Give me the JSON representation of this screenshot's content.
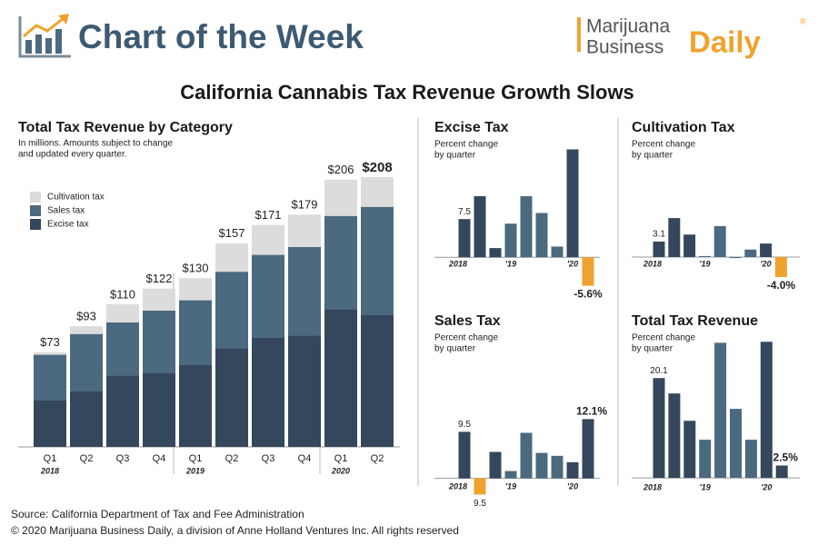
{
  "header": {
    "title": "Chart of the Week",
    "logo_top": "Marijuana",
    "logo_bottom": "Business",
    "logo_accent": "Daily",
    "logo_mark": "®"
  },
  "title": "California Cannabis Tax Revenue Growth Slows",
  "chart_data": [
    {
      "type": "stacked_bar",
      "title": "Total Tax Revenue by Category",
      "subtitle": [
        "In millions. Amounts subject to change",
        "and updated every quarter."
      ],
      "categories": [
        "Q1",
        "Q2",
        "Q3",
        "Q4",
        "Q1",
        "Q2",
        "Q3",
        "Q4",
        "Q1",
        "Q2"
      ],
      "years": [
        "2018",
        null,
        null,
        null,
        "2019",
        null,
        null,
        null,
        "2020",
        null
      ],
      "series": [
        {
          "name": "Excise tax",
          "color": "#34475c",
          "values": [
            36,
            43,
            55,
            57,
            63,
            76,
            84,
            86,
            106,
            102
          ]
        },
        {
          "name": "Sales tax",
          "color": "#4b6a80",
          "values": [
            35,
            44,
            41,
            48,
            50,
            59,
            64,
            68,
            72,
            83
          ]
        },
        {
          "name": "Cultivation tax",
          "color": "#dcdcdc",
          "values": [
            2,
            6,
            14,
            17,
            17,
            22,
            23,
            25,
            28,
            23
          ]
        }
      ],
      "totals": [
        73,
        93,
        110,
        122,
        130,
        157,
        171,
        179,
        206,
        208
      ],
      "total_labels": [
        "$73",
        "$93",
        "$110",
        "$122",
        "$130",
        "$157",
        "$171",
        "$179",
        "$206",
        "$208"
      ],
      "ylim": [
        0,
        210
      ]
    },
    {
      "type": "bar",
      "title": "Excise Tax",
      "subtitle": [
        "Percent change",
        "by quarter"
      ],
      "categories": [
        "2018",
        null,
        null,
        "'19",
        null,
        null,
        null,
        "'20",
        null
      ],
      "values": [
        7.5,
        12,
        1.8,
        6.6,
        12,
        8.7,
        2.1,
        21.2,
        -5.6
      ],
      "value_labels": [
        "7.5",
        null,
        null,
        null,
        null,
        null,
        null,
        null,
        "-5.6%"
      ],
      "colors": [
        "#34475c",
        "#34475c",
        "#34475c",
        "#4b6a80",
        "#4b6a80",
        "#4b6a80",
        "#4b6a80",
        "#34475c",
        "#f0a22e"
      ],
      "ylim": [
        -6,
        22
      ]
    },
    {
      "type": "bar",
      "title": "Cultivation Tax",
      "subtitle": [
        "Percent change",
        "by quarter"
      ],
      "categories": [
        "2018",
        null,
        null,
        "'19",
        null,
        null,
        null,
        "'20",
        null
      ],
      "values": [
        3.1,
        7.8,
        4.5,
        0.2,
        6.2,
        -0.2,
        1.5,
        2.7,
        -4.0
      ],
      "value_labels": [
        "3.1",
        null,
        null,
        null,
        null,
        null,
        null,
        null,
        "-4.0%"
      ],
      "colors": [
        "#34475c",
        "#34475c",
        "#34475c",
        "#4b6a80",
        "#4b6a80",
        "#4b6a80",
        "#4b6a80",
        "#34475c",
        "#f0a22e"
      ],
      "ylim": [
        -6,
        22
      ]
    },
    {
      "type": "bar",
      "title": "Sales Tax",
      "subtitle": [
        "Percent change",
        "by quarter"
      ],
      "categories": [
        "2018",
        null,
        null,
        "'19",
        null,
        null,
        null,
        "'20",
        null
      ],
      "values": [
        9.5,
        -3.3,
        5.4,
        1.5,
        9.3,
        5.2,
        4.6,
        3.3,
        12.1
      ],
      "value_labels": [
        "9.5",
        null,
        null,
        null,
        null,
        null,
        null,
        null,
        "12.1%"
      ],
      "annotation": "9.5",
      "colors": [
        "#34475c",
        "#f0a22e",
        "#34475c",
        "#4b6a80",
        "#4b6a80",
        "#4b6a80",
        "#4b6a80",
        "#34475c",
        "#34475c"
      ],
      "ylim": [
        -6,
        22
      ]
    },
    {
      "type": "bar",
      "title": "Total Tax Revenue",
      "subtitle": [
        "Percent change",
        "by quarter"
      ],
      "categories": [
        "2018",
        null,
        null,
        "'19",
        null,
        null,
        null,
        "'20",
        null
      ],
      "values": [
        20.1,
        17,
        11.5,
        7.7,
        27.2,
        13.9,
        7.7,
        27.4,
        2.5
      ],
      "value_labels": [
        "20.1",
        null,
        null,
        null,
        null,
        null,
        null,
        null,
        "2.5%"
      ],
      "colors": [
        "#34475c",
        "#34475c",
        "#34475c",
        "#4b6a80",
        "#4b6a80",
        "#4b6a80",
        "#4b6a80",
        "#34475c",
        "#34475c"
      ],
      "ylim": [
        -6,
        28
      ]
    }
  ],
  "footer": {
    "source": "Source: California Department of Tax and Fee Administration",
    "copyright": "© 2020 Marijuana Business Daily, a division of Anne Holland Ventures Inc. All rights reserved"
  }
}
